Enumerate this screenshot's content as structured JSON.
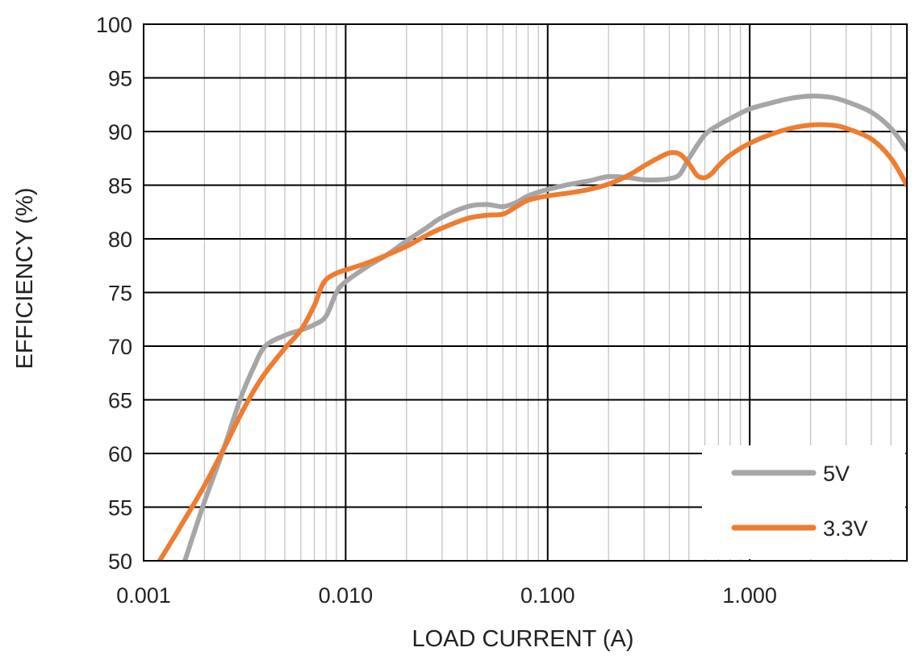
{
  "chart_data": {
    "type": "line",
    "title": "",
    "xlabel": "LOAD CURRENT (A)",
    "ylabel": "EFFICIENCY (%)",
    "x_scale": "log",
    "xlim": [
      0.001,
      6.0
    ],
    "ylim": [
      50,
      100
    ],
    "x_ticks": [
      0.001,
      0.01,
      0.1,
      1.0
    ],
    "x_tick_labels": [
      "0.001",
      "0.010",
      "0.100",
      "1.000"
    ],
    "y_ticks": [
      50,
      55,
      60,
      65,
      70,
      75,
      80,
      85,
      90,
      95,
      100
    ],
    "y_tick_labels": [
      "50",
      "55",
      "60",
      "65",
      "70",
      "75",
      "80",
      "85",
      "90",
      "95",
      "100"
    ],
    "grid": true,
    "legend_position": "bottom-right",
    "series": [
      {
        "name": "5V",
        "color": "#a6a6a6",
        "x": [
          0.0016,
          0.002,
          0.0025,
          0.003,
          0.0035,
          0.004,
          0.005,
          0.006,
          0.007,
          0.008,
          0.009,
          0.01,
          0.013,
          0.016,
          0.02,
          0.025,
          0.03,
          0.04,
          0.05,
          0.06,
          0.07,
          0.08,
          0.1,
          0.13,
          0.16,
          0.2,
          0.25,
          0.3,
          0.35,
          0.4,
          0.45,
          0.5,
          0.6,
          0.7,
          0.8,
          1.0,
          1.3,
          1.6,
          2.0,
          2.5,
          3.0,
          4.0,
          5.0,
          6.0
        ],
        "y": [
          50,
          55.5,
          60.5,
          65,
          68,
          70,
          71,
          71.5,
          72,
          72.8,
          75,
          76,
          77.5,
          78.5,
          79.8,
          81,
          82,
          83,
          83.2,
          83,
          83.4,
          84,
          84.6,
          85.1,
          85.4,
          85.8,
          85.7,
          85.5,
          85.5,
          85.6,
          86,
          87.5,
          89.7,
          90.6,
          91.2,
          92.1,
          92.7,
          93.1,
          93.3,
          93.2,
          92.8,
          91.8,
          90.3,
          88.3
        ]
      },
      {
        "name": "3.3V",
        "color": "#ed7d31",
        "x": [
          0.0012,
          0.0015,
          0.002,
          0.0025,
          0.003,
          0.0035,
          0.004,
          0.005,
          0.006,
          0.007,
          0.0075,
          0.008,
          0.009,
          0.01,
          0.013,
          0.016,
          0.02,
          0.025,
          0.03,
          0.04,
          0.05,
          0.06,
          0.07,
          0.08,
          0.1,
          0.13,
          0.16,
          0.2,
          0.25,
          0.3,
          0.35,
          0.4,
          0.45,
          0.5,
          0.55,
          0.6,
          0.65,
          0.7,
          0.8,
          1.0,
          1.3,
          1.6,
          2.0,
          2.5,
          3.0,
          4.0,
          5.0,
          6.0
        ],
        "y": [
          50,
          53,
          57,
          60.5,
          63.5,
          65.8,
          67.5,
          69.8,
          71.5,
          73.8,
          75.3,
          76.2,
          76.8,
          77.1,
          77.8,
          78.5,
          79.3,
          80.3,
          81,
          81.9,
          82.2,
          82.3,
          83,
          83.6,
          84,
          84.3,
          84.6,
          85.1,
          85.9,
          86.8,
          87.5,
          88,
          87.9,
          87,
          85.9,
          85.7,
          86.1,
          86.8,
          87.8,
          88.9,
          89.8,
          90.3,
          90.6,
          90.6,
          90.3,
          89.3,
          87.5,
          85
        ]
      }
    ]
  }
}
